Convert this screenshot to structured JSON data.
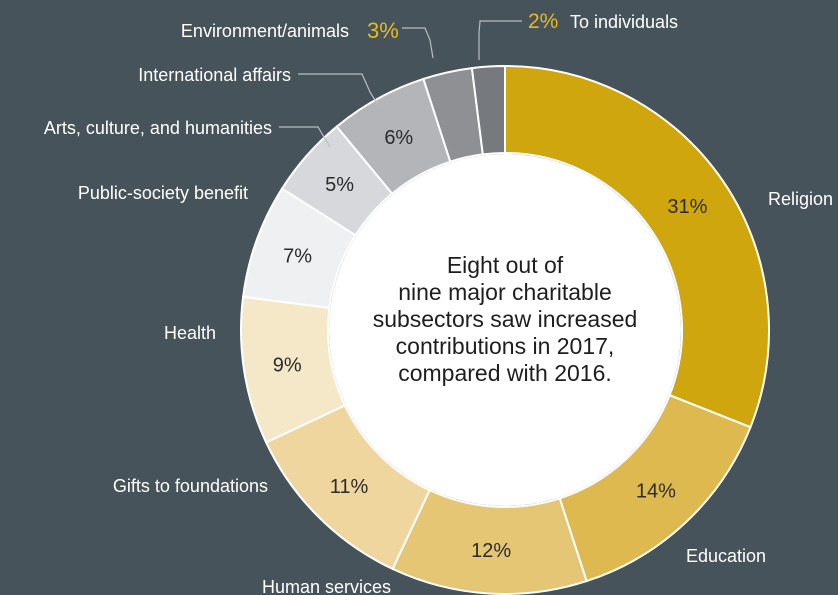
{
  "center_text": {
    "lines": [
      "Eight out of",
      "nine major charitable",
      "subsectors saw increased",
      "contributions in 2017,",
      "compared with 2016."
    ]
  },
  "chart_data": {
    "type": "pie",
    "donut": true,
    "categories": [
      "Religion",
      "Education",
      "Human services",
      "Gifts to foundations",
      "Health",
      "Public-society benefit",
      "Arts, culture, and humanities",
      "International affairs",
      "Environment/animals",
      "To individuals"
    ],
    "values": [
      31,
      14,
      12,
      11,
      9,
      7,
      5,
      6,
      3,
      2
    ],
    "value_labels": [
      "31%",
      "14%",
      "12%",
      "11%",
      "9%",
      "7%",
      "5%",
      "6%",
      "3%",
      "2%"
    ],
    "colors": [
      "#d0a60f",
      "#deb94f",
      "#e5c674",
      "#eed69e",
      "#f5e8c8",
      "#eff0f2",
      "#d6d8db",
      "#b3b5b8",
      "#8e9094",
      "#76797d"
    ],
    "legend": "direct labels around the ring"
  }
}
